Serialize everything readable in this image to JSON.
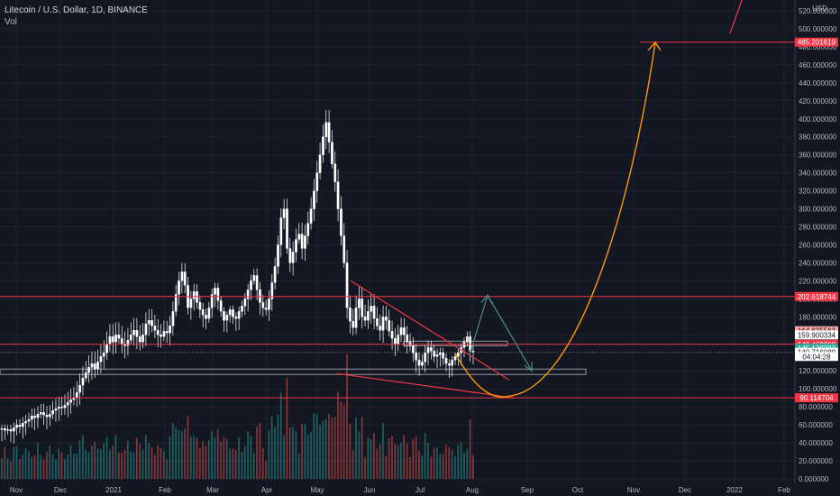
{
  "header": {
    "symbol_line": "Litecoin / U.S. Dollar, 1D, BINANCE",
    "volume_label": "Vol"
  },
  "colors": {
    "background": "#131722",
    "candle_up": "#ffffff",
    "candle_down": "#ffffff",
    "drawing_red": "#f23645",
    "drawing_orange": "#ff9800",
    "arrow_teal": "#4f8a8b",
    "volume_up": "#26a69a",
    "volume_down": "#ef5350"
  },
  "chart_data": {
    "type": "candlestick",
    "y_axis_unit": "USD",
    "y_ticks": [
      "520.000000",
      "500.000000",
      "480.000000",
      "460.000000",
      "440.000000",
      "420.000000",
      "400.000000",
      "380.000000",
      "360.000000",
      "340.000000",
      "320.000000",
      "300.000000",
      "280.000000",
      "260.000000",
      "240.000000",
      "220.000000",
      "200.000000",
      "180.000000",
      "160.000000",
      "140.000000",
      "120.000000",
      "100.000000",
      "80.000000",
      "60.000000",
      "40.000000",
      "20.000000",
      "0.000000"
    ],
    "y_range": [
      0,
      530
    ],
    "x_ticks": [
      "Nov",
      "Dec",
      "2021",
      "Feb",
      "Mar",
      "Apr",
      "May",
      "Jun",
      "Jul",
      "Aug",
      "Sep",
      "Oct",
      "Nov",
      "Dec",
      "2022",
      "Feb"
    ],
    "price_tags": [
      {
        "label": "485.201619",
        "value": 485.2,
        "color": "#f23645",
        "text_color": "#ffffff"
      },
      {
        "label": "202.618744",
        "value": 202.6,
        "color": "#f23645",
        "text_color": "#ffffff"
      },
      {
        "label": "164.635563",
        "value": 164.6,
        "color": "#f7a9a8",
        "text_color": "#131722"
      },
      {
        "label": "159.900334",
        "value": 159.9,
        "color": "#ffffff",
        "text_color": "#131722"
      },
      {
        "label": "149.469008",
        "value": 149.5,
        "color": "#f23645",
        "text_color": "#ffffff"
      },
      {
        "label": "145.129283",
        "value": 145.1,
        "color": "#26a69a",
        "text_color": "#ffffff"
      },
      {
        "label": "140.716080",
        "value": 140.7,
        "color": "#ffffff",
        "text_color": "#131722"
      },
      {
        "label": "04:04:28",
        "value": 136.0,
        "color": "#ffffff",
        "text_color": "#131722"
      },
      {
        "label": "90.114704",
        "value": 90.1,
        "color": "#f23645",
        "text_color": "#ffffff"
      }
    ],
    "current_price": 140.7,
    "horizontal_levels": [
      485.2,
      202.6,
      149.5,
      90.1
    ],
    "support_zone": [
      116,
      122
    ],
    "pattern_zone": [
      148,
      153
    ],
    "price_series_close": [
      56,
      54,
      55,
      53,
      57,
      60,
      58,
      62,
      64,
      66,
      70,
      68,
      72,
      74,
      71,
      69,
      72,
      76,
      78,
      80,
      79,
      82,
      85,
      88,
      90,
      96,
      104,
      112,
      118,
      124,
      128,
      122,
      130,
      136,
      140,
      150,
      158,
      152,
      160,
      156,
      150,
      148,
      154,
      160,
      165,
      158,
      152,
      160,
      172,
      176,
      170,
      165,
      160,
      158,
      164,
      162,
      170,
      186,
      205,
      220,
      230,
      215,
      190,
      200,
      208,
      196,
      188,
      182,
      178,
      190,
      205,
      212,
      198,
      186,
      176,
      182,
      188,
      180,
      178,
      186,
      192,
      200,
      210,
      220,
      226,
      210,
      196,
      190,
      188,
      200,
      218,
      236,
      260,
      290,
      300,
      256,
      240,
      252,
      266,
      272,
      256,
      270,
      284,
      300,
      320,
      340,
      360,
      380,
      396,
      374,
      350,
      330,
      300,
      270,
      240,
      190,
      175,
      168,
      190,
      200,
      180,
      176,
      186,
      192,
      178,
      170,
      165,
      180,
      176,
      164,
      156,
      150,
      160,
      168,
      160,
      152,
      148,
      140,
      132,
      126,
      130,
      140,
      146,
      142,
      136,
      138,
      140,
      134,
      128,
      126,
      132,
      136,
      140,
      146,
      152,
      158,
      142,
      141
    ],
    "annotations": {
      "descending_resistance": [
        [
          213,
          220
        ],
        [
          282,
          110
        ]
      ],
      "lower_support": [
        [
          208,
          117
        ],
        [
          285,
          90
        ]
      ],
      "projection_up": {
        "from": [
          261,
          138
        ],
        "to": [
          271,
          204
        ]
      },
      "projection_down": {
        "from": [
          271,
          204
        ],
        "to": [
          290,
          120
        ]
      },
      "parabola": {
        "start": [
          253,
          140
        ],
        "bottom": [
          285,
          92
        ],
        "end": [
          363,
          485
        ]
      }
    }
  }
}
